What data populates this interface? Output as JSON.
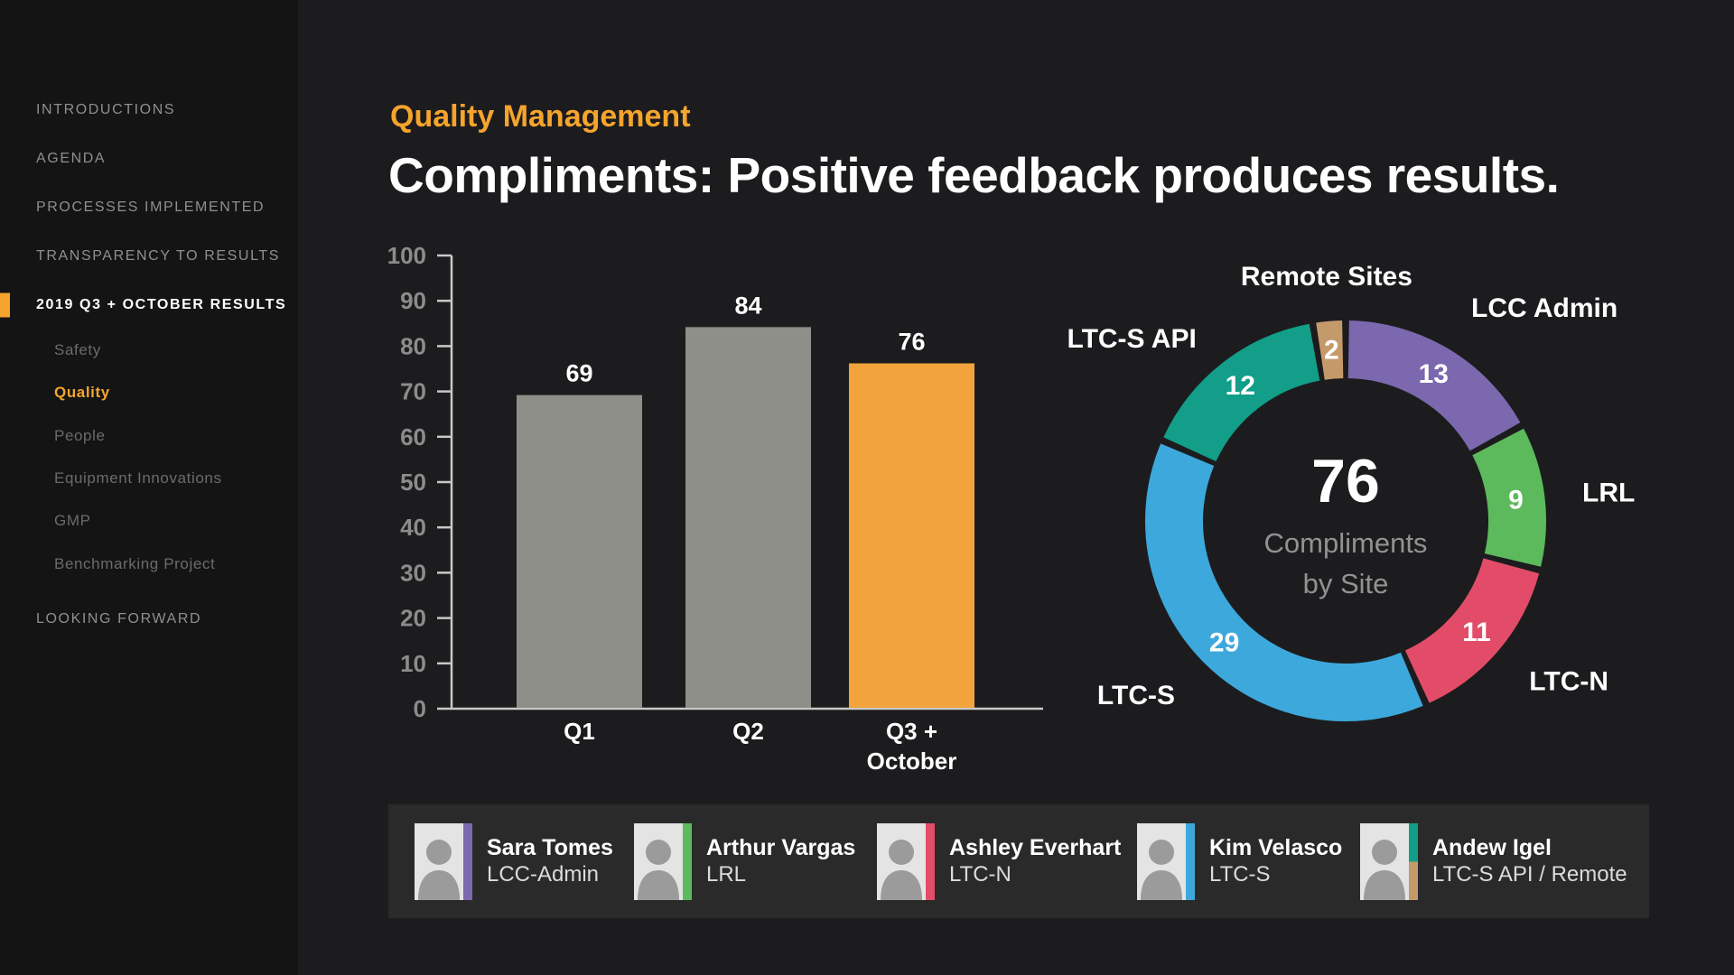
{
  "accent_color": "#F5A42C",
  "background_color": "#1C1C1E",
  "sidebar_color": "#141414",
  "sidebar": {
    "items": [
      {
        "label": "INTRODUCTIONS",
        "level": "top",
        "state": "default"
      },
      {
        "label": "AGENDA",
        "level": "top",
        "state": "default"
      },
      {
        "label": "PROCESSES IMPLEMENTED",
        "level": "top",
        "state": "default"
      },
      {
        "label": "TRANSPARENCY TO RESULTS",
        "level": "top",
        "state": "default"
      },
      {
        "label": "2019 Q3 + OCTOBER RESULTS",
        "level": "top",
        "state": "active"
      },
      {
        "label": "Safety",
        "level": "sub",
        "state": "default"
      },
      {
        "label": "Quality",
        "level": "sub",
        "state": "selected"
      },
      {
        "label": "People",
        "level": "sub",
        "state": "default"
      },
      {
        "label": "Equipment Innovations",
        "level": "sub",
        "state": "default"
      },
      {
        "label": "GMP",
        "level": "sub",
        "state": "default"
      },
      {
        "label": "Benchmarking Project",
        "level": "sub",
        "state": "default"
      },
      {
        "label": "LOOKING FORWARD",
        "level": "top",
        "state": "default"
      }
    ]
  },
  "header": {
    "kicker": "Quality Management",
    "title": "Compliments: Positive feedback produces results."
  },
  "chart_data": [
    {
      "type": "bar",
      "title": "",
      "xlabel": "",
      "ylabel": "",
      "categories": [
        "Q1",
        "Q2",
        "Q3 + October"
      ],
      "category_lines": [
        [
          "Q1"
        ],
        [
          "Q2"
        ],
        [
          "Q3 +",
          "October"
        ]
      ],
      "values": [
        69,
        84,
        76
      ],
      "value_labels": [
        "69",
        "84",
        "76"
      ],
      "bar_colors": [
        "#8F8F89",
        "#8F8F89",
        "#F2A33C"
      ],
      "ylim": [
        0,
        100
      ],
      "ytick_step": 10,
      "grid": false,
      "axis_color": "#C9C9C7",
      "tick_label_color": "#8C8C8C"
    },
    {
      "type": "pie",
      "subtype": "donut",
      "title": "",
      "center_value": "76",
      "center_label_lines": [
        "Compliments",
        "by Site"
      ],
      "center_label_color": "#929292",
      "start_angle_deg": 0,
      "direction": "clockwise",
      "total": 76,
      "segments": [
        {
          "label": "LCC Admin",
          "value": 13,
          "color": "#7B68AE"
        },
        {
          "label": "LRL",
          "value": 9,
          "color": "#5CBA5C"
        },
        {
          "label": "LTC-N",
          "value": 11,
          "color": "#E34C68"
        },
        {
          "label": "LTC-S",
          "value": 29,
          "color": "#3DA8DC"
        },
        {
          "label": "LTC-S API",
          "value": 12,
          "color": "#129E88"
        },
        {
          "label": "Remote Sites",
          "value": 2,
          "color": "#C59A6B"
        }
      ]
    }
  ],
  "people": [
    {
      "name": "Sara Tomes",
      "site": "LCC-Admin",
      "stripe_colors": [
        "#7B68AE"
      ]
    },
    {
      "name": "Arthur Vargas",
      "site": "LRL",
      "stripe_colors": [
        "#5CBA5C"
      ]
    },
    {
      "name": "Ashley Everhart",
      "site": "LTC-N",
      "stripe_colors": [
        "#E34C68"
      ]
    },
    {
      "name": "Kim Velasco",
      "site": "LTC-S",
      "stripe_colors": [
        "#3DA8DC"
      ]
    },
    {
      "name": "Andew Igel",
      "site": "LTC-S API / Remote",
      "stripe_colors": [
        "#129E88",
        "#C59A6B"
      ]
    }
  ]
}
